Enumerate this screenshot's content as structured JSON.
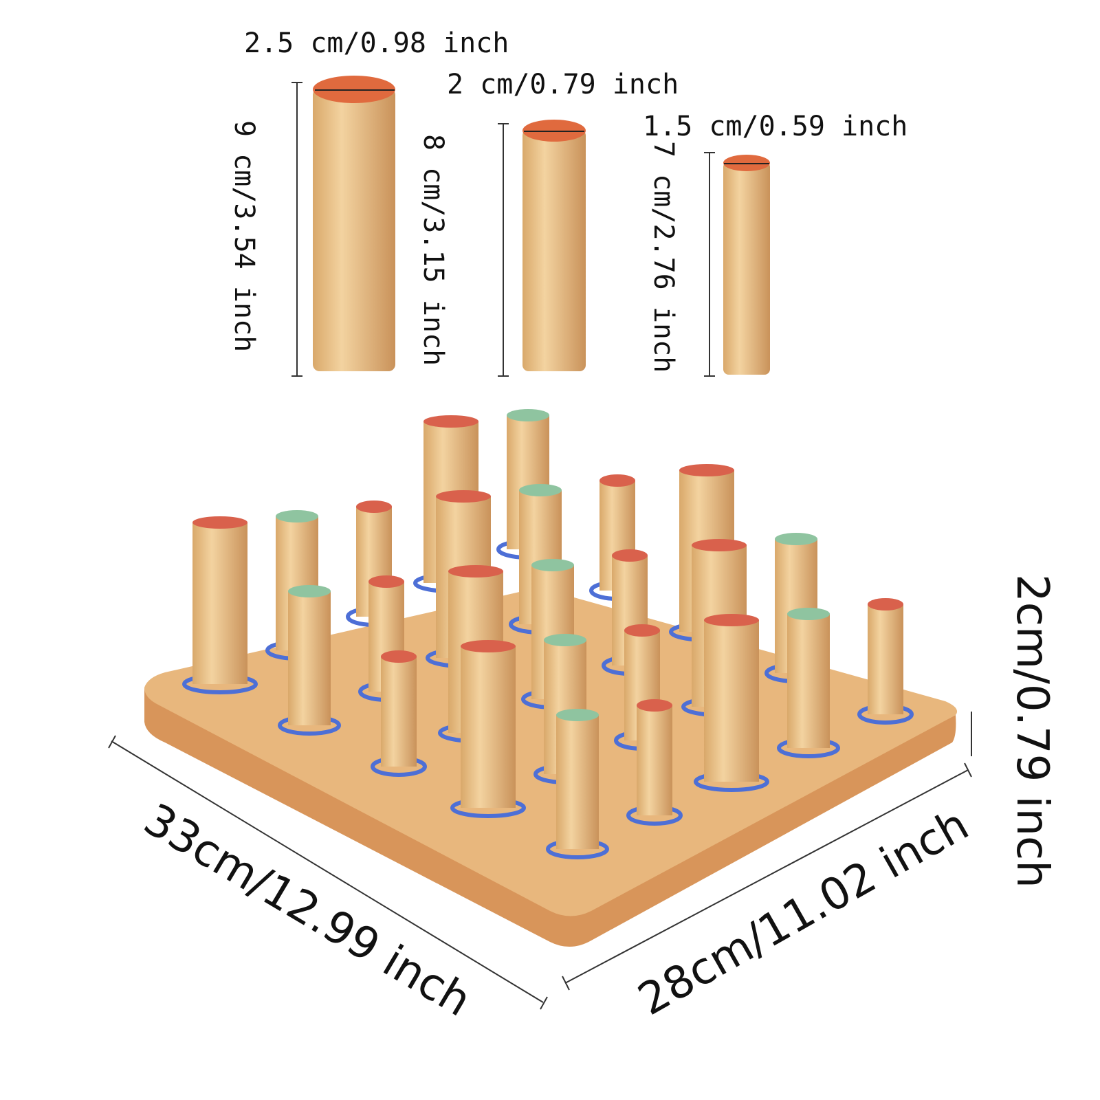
{
  "pegs": [
    {
      "diameter": "2.5 cm/0.98 inch",
      "height": "9 cm/3.54 inch"
    },
    {
      "diameter": "2 cm/0.79 inch",
      "height": "8 cm/3.15 inch"
    },
    {
      "diameter": "1.5 cm/0.59 inch",
      "height": "7 cm/2.76 inch"
    }
  ],
  "board": {
    "thickness": "2cm/0.79 inch",
    "length": "33cm/12.99 inch",
    "width": "28cm/11.02 inch"
  }
}
